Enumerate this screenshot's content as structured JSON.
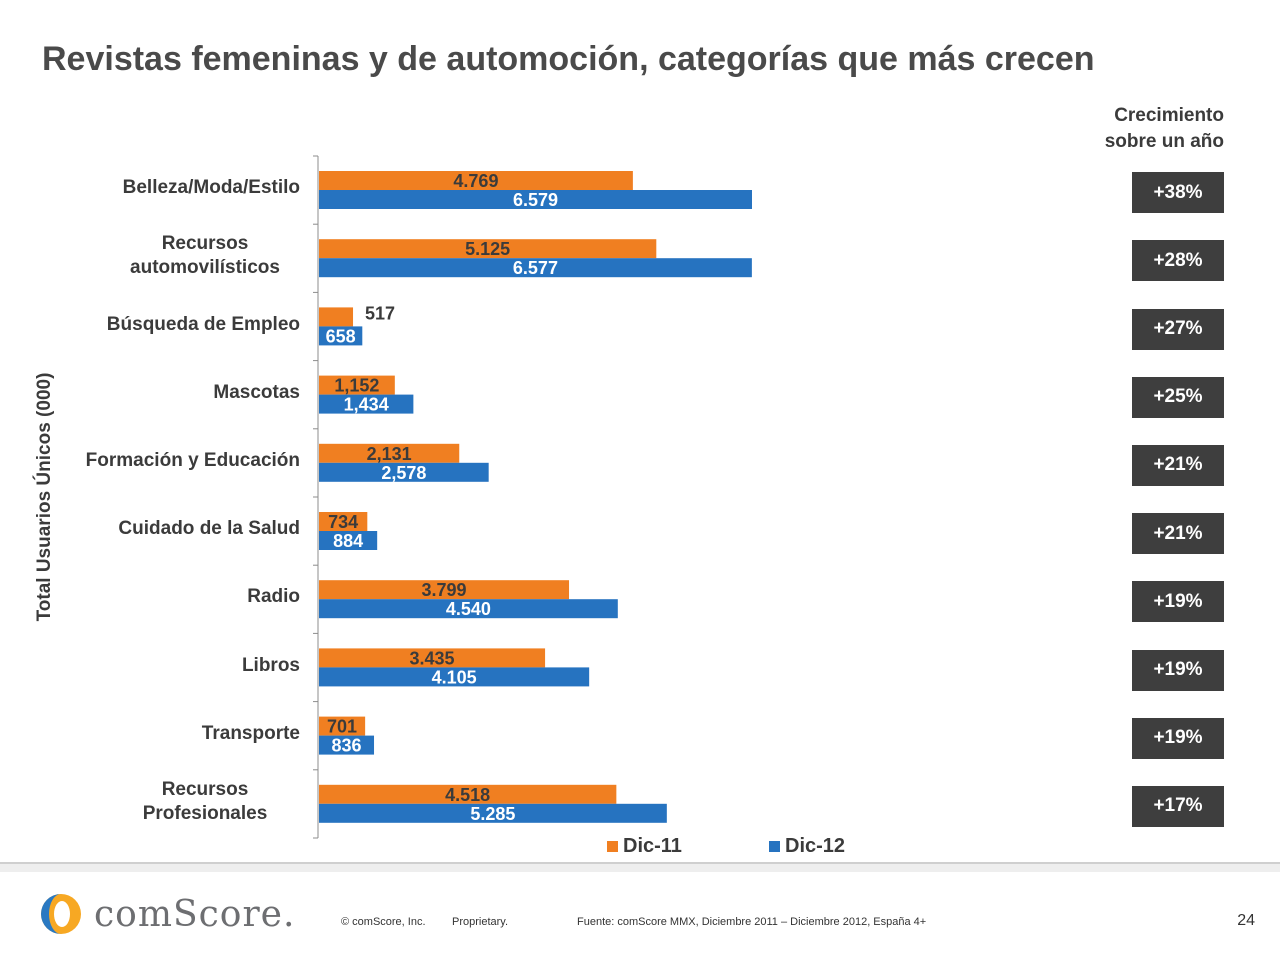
{
  "title": "Revistas femeninas y de automoción, categorías que más crecen",
  "growth_header": [
    "Crecimiento",
    "sobre un año"
  ],
  "chart_data": {
    "type": "bar",
    "orientation": "horizontal",
    "title": "Revistas femeninas y de automoción, categorías que más crecen",
    "ylabel": "Total Usuarios Únicos (000)",
    "xlim": [
      0,
      7000
    ],
    "categories": [
      [
        "Belleza/Moda/Estilo"
      ],
      [
        "Recursos",
        "automovilísticos"
      ],
      [
        "Búsqueda de Empleo"
      ],
      [
        "Mascotas"
      ],
      [
        "Formación y Educación"
      ],
      [
        "Cuidado de la Salud"
      ],
      [
        "Radio"
      ],
      [
        "Libros"
      ],
      [
        "Transporte"
      ],
      [
        "Recursos",
        "Profesionales"
      ]
    ],
    "series": [
      {
        "name": "Dic-11",
        "color": "#f07f21",
        "values": [
          4769,
          5125,
          517,
          1152,
          2131,
          734,
          3799,
          3435,
          701,
          4518
        ],
        "labels": [
          "4.769",
          "5.125",
          "517",
          "1,152",
          "2,131",
          "734",
          "3.799",
          "3.435",
          "701",
          "4.518"
        ]
      },
      {
        "name": "Dic-12",
        "color": "#2673c0",
        "values": [
          6579,
          6577,
          658,
          1434,
          2578,
          884,
          4540,
          4105,
          836,
          5285
        ],
        "labels": [
          "6.579",
          "6.577",
          "658",
          "1,434",
          "2,578",
          "884",
          "4.540",
          "4.105",
          "836",
          "5.285"
        ]
      }
    ],
    "growth": [
      "+38%",
      "+28%",
      "+27%",
      "+25%",
      "+21%",
      "+21%",
      "+19%",
      "+19%",
      "+19%",
      "+17%"
    ]
  },
  "footer": {
    "brand": "comScore.",
    "copyright": "© comScore, Inc.",
    "proprietary": "Proprietary.",
    "source": "Fuente: comScore MMX, Diciembre 2011 – Diciembre 2012, España 4+",
    "page": "24"
  }
}
